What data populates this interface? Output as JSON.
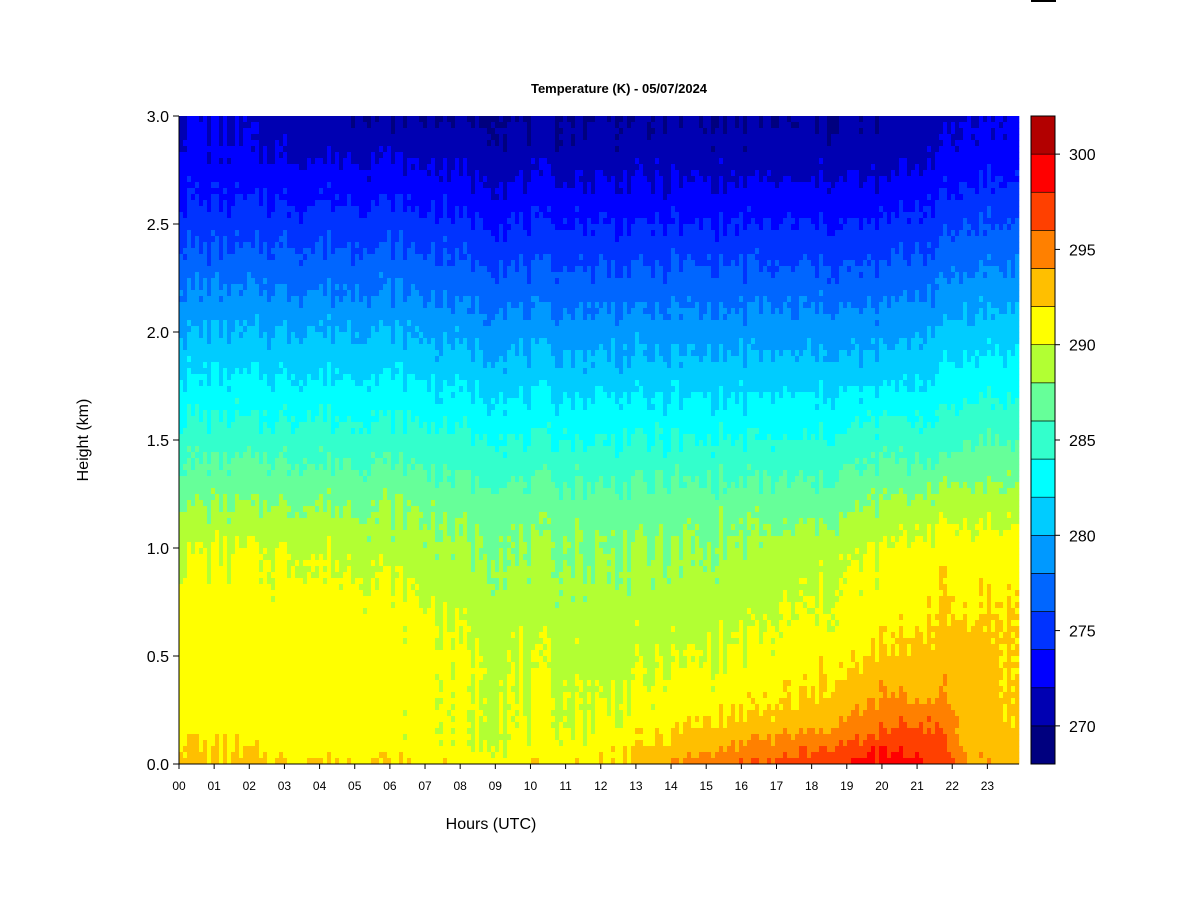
{
  "chart_data": {
    "type": "heatmap",
    "title": "Temperature (K) - 05/07/2024",
    "xlabel": "Hours (UTC)",
    "ylabel": "Height (km)",
    "x_ticks": [
      "00",
      "01",
      "02",
      "03",
      "04",
      "05",
      "06",
      "07",
      "08",
      "09",
      "10",
      "11",
      "12",
      "13",
      "14",
      "15",
      "16",
      "17",
      "18",
      "19",
      "20",
      "21",
      "22",
      "23"
    ],
    "y_ticks": [
      "0.0",
      "0.5",
      "1.0",
      "1.5",
      "2.0",
      "2.5",
      "3.0"
    ],
    "xlim": [
      0,
      23.9
    ],
    "ylim": [
      0,
      3.0
    ],
    "colorbar": {
      "range": [
        268,
        302
      ],
      "ticks": [
        "270",
        "275",
        "280",
        "285",
        "290",
        "295",
        "300"
      ],
      "levels": [
        268,
        270,
        272,
        274,
        276,
        278,
        280,
        282,
        284,
        286,
        288,
        290,
        292,
        294,
        296,
        298,
        300,
        302
      ],
      "colors": [
        "#00007f",
        "#0000b2",
        "#0000ff",
        "#0033ff",
        "#0066ff",
        "#0099ff",
        "#00ccff",
        "#00ffff",
        "#33ffcc",
        "#66ff99",
        "#b2ff33",
        "#ffff00",
        "#ffbf00",
        "#ff8000",
        "#ff4000",
        "#ff0000",
        "#b20000",
        "#7f0000"
      ]
    },
    "temperature_profiles": {
      "height_km": [
        0.0,
        0.1,
        0.2,
        0.3,
        0.5,
        0.7,
        1.0,
        1.2,
        1.4,
        1.6,
        1.8,
        2.0,
        2.2,
        2.4,
        2.6,
        2.8,
        3.0
      ],
      "hours": [
        0,
        3,
        6,
        9,
        12,
        15,
        18,
        20,
        21.5,
        22.5,
        23.9
      ],
      "values_K": [
        [
          293,
          292,
          291,
          291,
          291,
          291,
          290,
          288,
          286,
          284,
          282,
          280,
          278,
          276,
          274,
          273,
          272
        ],
        [
          292,
          291,
          291,
          291,
          291,
          291,
          290,
          288,
          286,
          284,
          282,
          280,
          278,
          276,
          274,
          272,
          271
        ],
        [
          292,
          291,
          291,
          291,
          291,
          291,
          289,
          288,
          286,
          284,
          282,
          280,
          278,
          276,
          274,
          272,
          270
        ],
        [
          291,
          290,
          290,
          290,
          290,
          289,
          288,
          287,
          285,
          283,
          281,
          279,
          277,
          275,
          273,
          271,
          270
        ],
        [
          292,
          291,
          290,
          290,
          289,
          289,
          288,
          287,
          285,
          283,
          281,
          279,
          277,
          275,
          273,
          271,
          270
        ],
        [
          295,
          293,
          292,
          291,
          290,
          289,
          288,
          287,
          285,
          283,
          281,
          279,
          277,
          275,
          273,
          271,
          270
        ],
        [
          297,
          295,
          293,
          292,
          291,
          290,
          289,
          287,
          285,
          283,
          281,
          279,
          277,
          275,
          273,
          271,
          270
        ],
        [
          299,
          297,
          295,
          294,
          292,
          291,
          290,
          288,
          286,
          284,
          281,
          279,
          277,
          275,
          273,
          271,
          270
        ],
        [
          298,
          297,
          296,
          294,
          293,
          292,
          291,
          289,
          286,
          284,
          282,
          280,
          278,
          276,
          274,
          272,
          271
        ],
        [
          294,
          293,
          293,
          293,
          293,
          292,
          291,
          289,
          287,
          285,
          283,
          281,
          279,
          277,
          275,
          273,
          272
        ],
        [
          293,
          293,
          292,
          292,
          292,
          292,
          291,
          289,
          287,
          285,
          283,
          281,
          279,
          277,
          275,
          273,
          272
        ]
      ]
    }
  }
}
